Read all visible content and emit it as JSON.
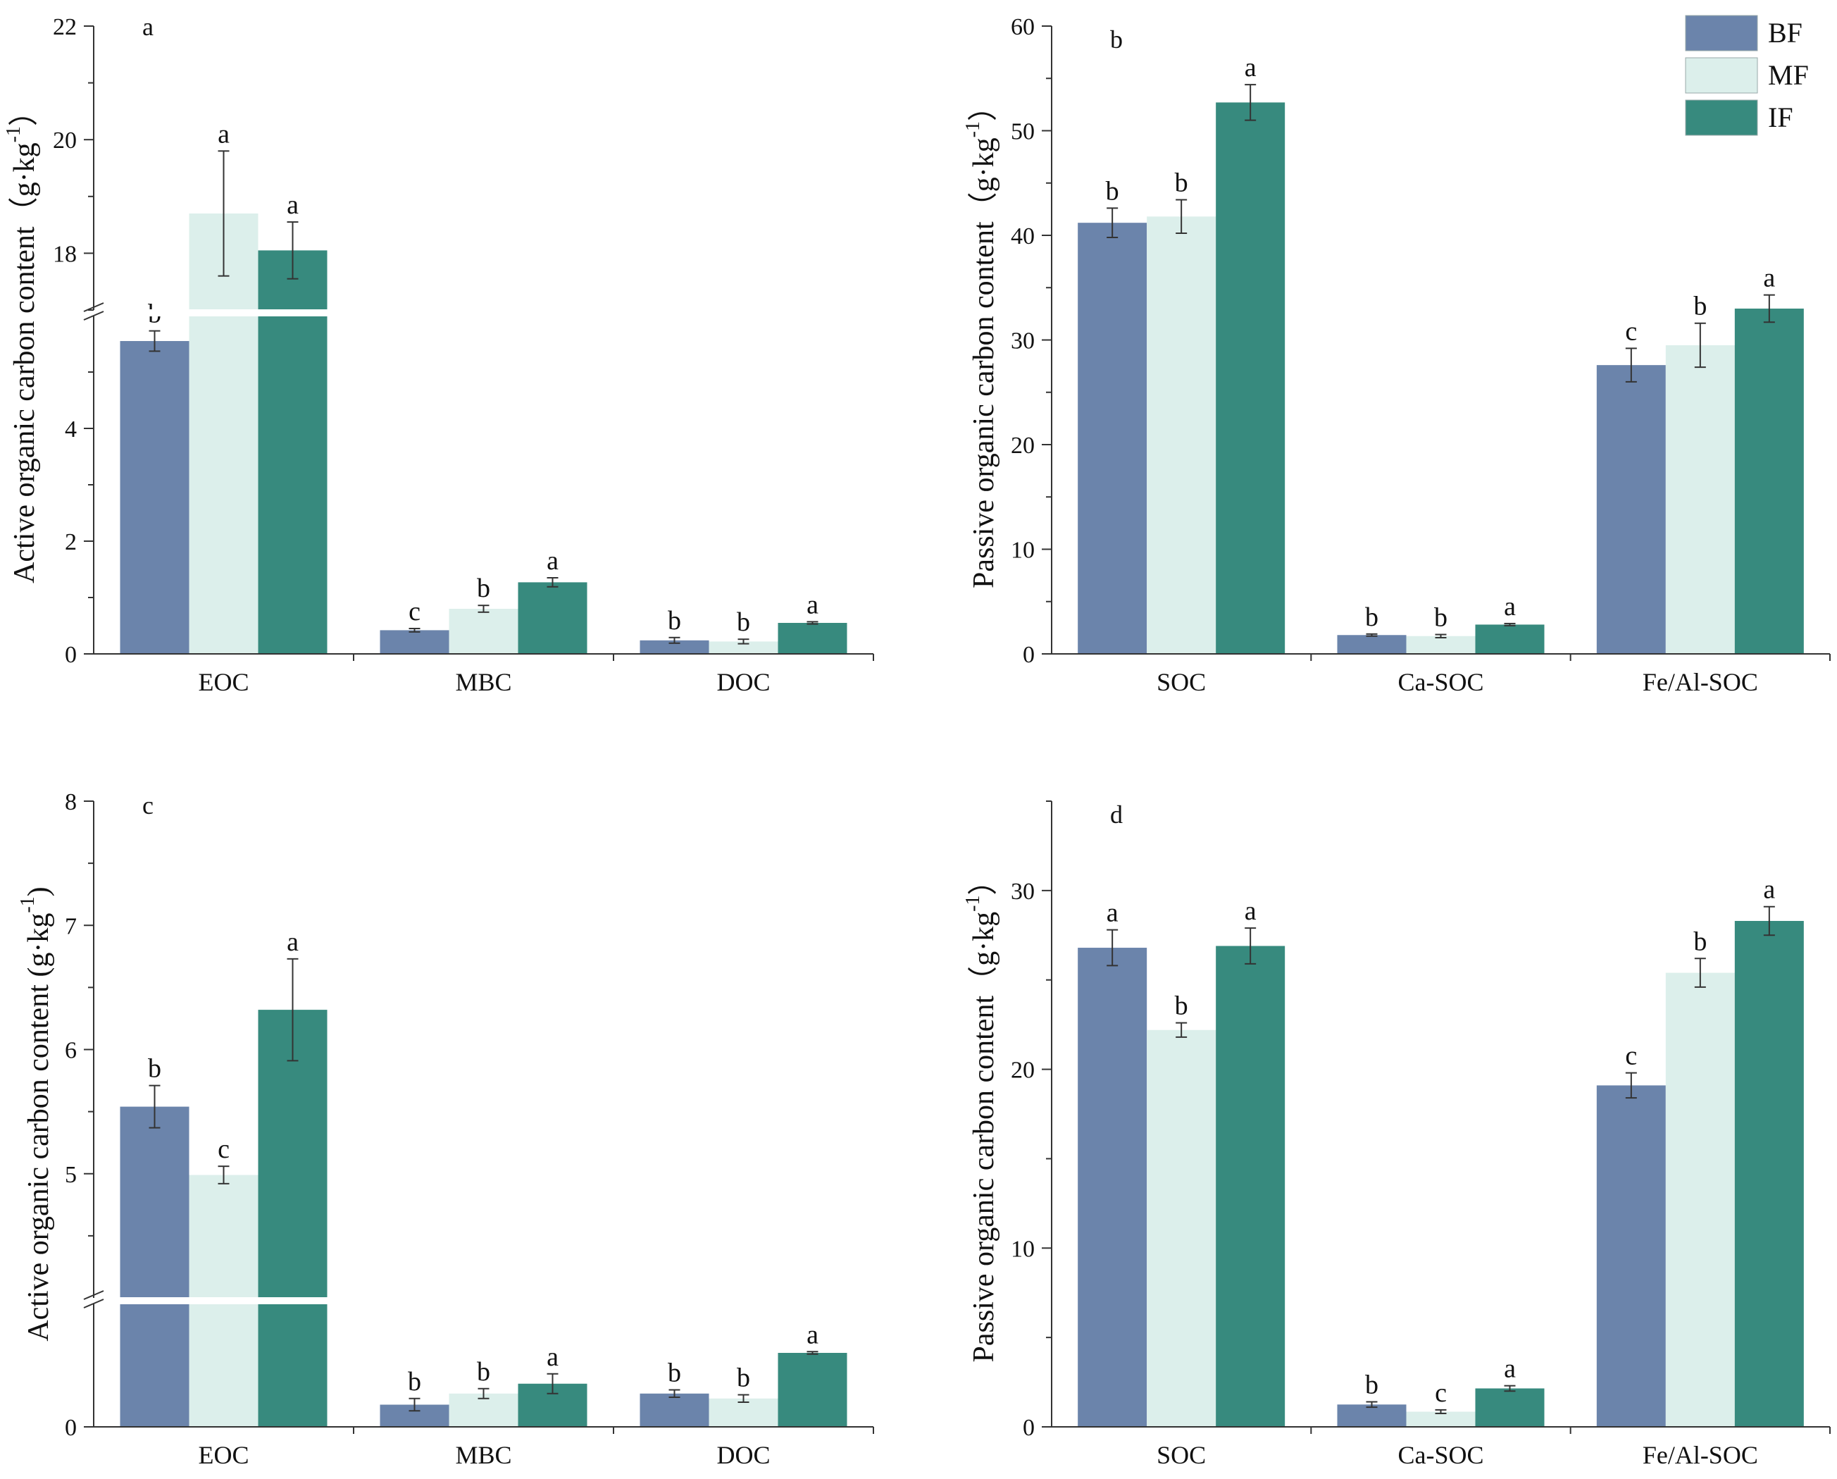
{
  "colors": {
    "BF": "#6b84ab",
    "MF": "#dcefeb",
    "IF": "#378a7e"
  },
  "legend": [
    {
      "key": "BF",
      "label": "BF"
    },
    {
      "key": "MF",
      "label": "MF"
    },
    {
      "key": "IF",
      "label": "IF"
    }
  ],
  "chart_data": [
    {
      "panel": "a",
      "type": "bar",
      "ylabel": "Active organic carbon content（g·kg",
      "ylabel_sup": "-1",
      "ylabel_close": "）",
      "categories": [
        "EOC",
        "MBC",
        "DOC"
      ],
      "axis_break": {
        "lower": [
          0,
          6
        ],
        "upper": [
          17,
          22
        ]
      },
      "yticks_lower": [
        0,
        2,
        4
      ],
      "yticks_upper": [
        18,
        20,
        22
      ],
      "series": [
        {
          "name": "BF",
          "values": [
            5.55,
            0.42,
            0.24
          ],
          "errors": [
            0.18,
            0.03,
            0.05
          ],
          "letters": [
            "b",
            "c",
            "b"
          ]
        },
        {
          "name": "MF",
          "values": [
            18.7,
            0.8,
            0.22
          ],
          "errors": [
            1.1,
            0.06,
            0.04
          ],
          "letters": [
            "a",
            "b",
            "b"
          ]
        },
        {
          "name": "IF",
          "values": [
            18.05,
            1.27,
            0.55
          ],
          "errors": [
            0.5,
            0.08,
            0.02
          ],
          "letters": [
            "a",
            "a",
            "a"
          ]
        }
      ]
    },
    {
      "panel": "b",
      "type": "bar",
      "ylabel": "Passive organic carbon content（g·kg",
      "ylabel_sup": "-1",
      "ylabel_close": "）",
      "categories": [
        "SOC",
        "Ca-SOC",
        "Fe/Al-SOC"
      ],
      "ylim": [
        0,
        60
      ],
      "yticks": [
        0,
        10,
        20,
        30,
        40,
        50,
        60
      ],
      "series": [
        {
          "name": "BF",
          "values": [
            41.2,
            1.8,
            27.6
          ],
          "errors": [
            1.4,
            0.1,
            1.6
          ],
          "letters": [
            "b",
            "b",
            "c"
          ]
        },
        {
          "name": "MF",
          "values": [
            41.8,
            1.7,
            29.5
          ],
          "errors": [
            1.6,
            0.15,
            2.1
          ],
          "letters": [
            "b",
            "b",
            "b"
          ]
        },
        {
          "name": "IF",
          "values": [
            52.7,
            2.8,
            33.0
          ],
          "errors": [
            1.7,
            0.1,
            1.3
          ],
          "letters": [
            "a",
            "a",
            "a"
          ]
        }
      ]
    },
    {
      "panel": "c",
      "type": "bar",
      "ylabel": "Active organic carbon content (g·kg",
      "ylabel_sup": "-1",
      "ylabel_close": ")",
      "categories": [
        "EOC",
        "MBC",
        "DOC"
      ],
      "axis_break": {
        "lower": [
          0,
          1.0
        ],
        "upper": [
          4.0,
          8.0
        ]
      },
      "yticks_lower": [
        0
      ],
      "yticks_upper": [
        5,
        6,
        7,
        8
      ],
      "series": [
        {
          "name": "BF",
          "values": [
            5.54,
            0.18,
            0.27
          ],
          "errors": [
            0.17,
            0.05,
            0.03
          ],
          "letters": [
            "b",
            "b",
            "b"
          ]
        },
        {
          "name": "MF",
          "values": [
            4.99,
            0.27,
            0.23
          ],
          "errors": [
            0.07,
            0.04,
            0.03
          ],
          "letters": [
            "c",
            "b",
            "b"
          ]
        },
        {
          "name": "IF",
          "values": [
            6.32,
            0.35,
            0.6
          ],
          "errors": [
            0.41,
            0.08,
            0.01
          ],
          "letters": [
            "a",
            "a",
            "a"
          ]
        }
      ]
    },
    {
      "panel": "d",
      "type": "bar",
      "ylabel": "Passive organic carbon content（g·kg",
      "ylabel_sup": "-1",
      "ylabel_close": "）",
      "categories": [
        "SOC",
        "Ca-SOC",
        "Fe/Al-SOC"
      ],
      "ylim": [
        0,
        35
      ],
      "yticks": [
        0,
        10,
        20,
        30
      ],
      "series": [
        {
          "name": "BF",
          "values": [
            26.8,
            1.25,
            19.1
          ],
          "errors": [
            1.0,
            0.15,
            0.7
          ],
          "letters": [
            "a",
            "b",
            "c"
          ]
        },
        {
          "name": "MF",
          "values": [
            22.2,
            0.85,
            25.4
          ],
          "errors": [
            0.4,
            0.1,
            0.8
          ],
          "letters": [
            "b",
            "c",
            "b"
          ]
        },
        {
          "name": "IF",
          "values": [
            26.9,
            2.15,
            28.3
          ],
          "errors": [
            1.0,
            0.15,
            0.8
          ],
          "letters": [
            "a",
            "a",
            "a"
          ]
        }
      ]
    }
  ]
}
